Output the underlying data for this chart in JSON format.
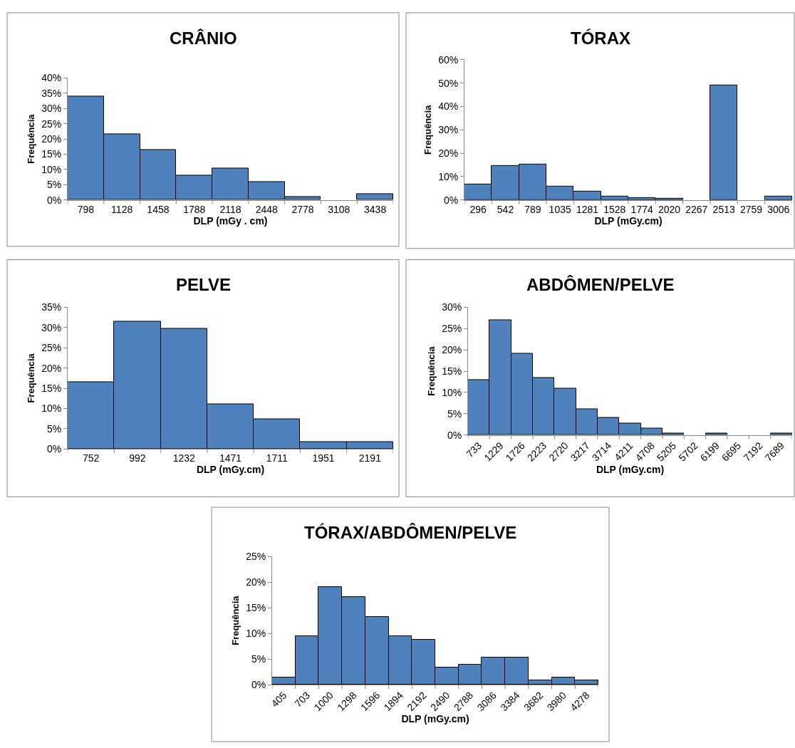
{
  "chart_data": [
    {
      "type": "bar",
      "title": "CRÂNIO",
      "xlabel": "DLP (mGy . cm)",
      "ylabel": "Frequência",
      "categories": [
        "798",
        "1128",
        "1458",
        "1788",
        "2118",
        "2448",
        "2778",
        "3108",
        "3438"
      ],
      "color": "#4f81bd",
      "values": [
        34,
        21.5,
        16.5,
        8,
        10.3,
        6,
        1,
        0,
        2
      ],
      "ylim": [
        0,
        40
      ],
      "yticks": [
        {
          "value": 0,
          "label": "0%"
        },
        {
          "value": 5,
          "label": "5%"
        },
        {
          "value": 10,
          "label": "10%"
        },
        {
          "value": 15,
          "label": "15%"
        },
        {
          "value": 20,
          "label": "20%"
        },
        {
          "value": 25,
          "label": "25%"
        },
        {
          "value": 30,
          "label": "30%"
        },
        {
          "value": 35,
          "label": "35%"
        },
        {
          "value": 40,
          "label": "40%"
        }
      ],
      "grid": false,
      "legend": false
    },
    {
      "type": "bar",
      "title": "TÓRAX",
      "xlabel": "DLP (mGy.cm)",
      "ylabel": "Frequência",
      "categories": [
        "296",
        "542",
        "789",
        "1035",
        "1281",
        "1528",
        "1774",
        "2020",
        "2267",
        "2513",
        "2759",
        "3006"
      ],
      "color": "#4f81bd",
      "values": [
        6.7,
        14.6,
        15.1,
        5.7,
        3.5,
        1.5,
        0.8,
        0.5,
        0,
        49,
        0,
        1.5
      ],
      "ylim": [
        0,
        60
      ],
      "yticks": [
        {
          "value": 0,
          "label": "0%"
        },
        {
          "value": 10,
          "label": "10%"
        },
        {
          "value": 20,
          "label": "20%"
        },
        {
          "value": 30,
          "label": "30%"
        },
        {
          "value": 40,
          "label": "40%"
        },
        {
          "value": 50,
          "label": "50%"
        },
        {
          "value": 60,
          "label": "60%"
        }
      ],
      "grid": false,
      "legend": false
    },
    {
      "type": "bar",
      "title": "PELVE",
      "xlabel": "DLP (mGy.cm)",
      "ylabel": "Frequência",
      "categories": [
        "752",
        "992",
        "1232",
        "1471",
        "1711",
        "1951",
        "2191"
      ],
      "color": "#4f81bd",
      "values": [
        16.5,
        31.5,
        29.7,
        11,
        7.4,
        1.8,
        1.8
      ],
      "ylim": [
        0,
        35
      ],
      "yticks": [
        {
          "value": 0,
          "label": "0%"
        },
        {
          "value": 5,
          "label": "5%"
        },
        {
          "value": 10,
          "label": "10%"
        },
        {
          "value": 15,
          "label": "15%"
        },
        {
          "value": 20,
          "label": "20%"
        },
        {
          "value": 25,
          "label": "25%"
        },
        {
          "value": 30,
          "label": "30%"
        },
        {
          "value": 35,
          "label": "35%"
        }
      ],
      "grid": false,
      "legend": false
    },
    {
      "type": "bar",
      "title": "ABDÔMEN/PELVE",
      "xlabel": "DLP (mGy.cm)",
      "ylabel": "Frequência",
      "categories": [
        "733",
        "1229",
        "1726",
        "2223",
        "2720",
        "3217",
        "3714",
        "4211",
        "4708",
        "5205",
        "5702",
        "6199",
        "6695",
        "7192",
        "7689"
      ],
      "color": "#4f81bd",
      "values": [
        13,
        27,
        19.2,
        13.5,
        11,
        6.1,
        4,
        2.8,
        1.6,
        0.3,
        0,
        0.3,
        0,
        0,
        0.3
      ],
      "ylim": [
        0,
        30
      ],
      "yticks": [
        {
          "value": 0,
          "label": "0%"
        },
        {
          "value": 5,
          "label": "5%"
        },
        {
          "value": 10,
          "label": "10%"
        },
        {
          "value": 15,
          "label": "15%"
        },
        {
          "value": 20,
          "label": "20%"
        },
        {
          "value": 25,
          "label": "25%"
        },
        {
          "value": 30,
          "label": "30%"
        }
      ],
      "grid": false,
      "legend": false
    },
    {
      "type": "bar",
      "title": "TÓRAX/ABDÔMEN/PELVE",
      "xlabel": "DLP (mGy.cm)",
      "ylabel": "Frequência",
      "categories": [
        "405",
        "703",
        "1000",
        "1298",
        "1596",
        "1894",
        "2192",
        "2490",
        "2788",
        "3086",
        "3384",
        "3682",
        "3980",
        "4278"
      ],
      "color": "#4f81bd",
      "values": [
        1.4,
        9.4,
        19.1,
        17.1,
        13.2,
        9.4,
        8.8,
        3.3,
        3.9,
        5.3,
        5.3,
        0.9,
        1.4,
        0.9
      ],
      "ylim": [
        0,
        25
      ],
      "yticks": [
        {
          "value": 0,
          "label": "0%"
        },
        {
          "value": 5,
          "label": "5%"
        },
        {
          "value": 10,
          "label": "10%"
        },
        {
          "value": 15,
          "label": "15%"
        },
        {
          "value": 20,
          "label": "20%"
        },
        {
          "value": 25,
          "label": "25%"
        }
      ],
      "grid": false,
      "legend": false
    }
  ]
}
